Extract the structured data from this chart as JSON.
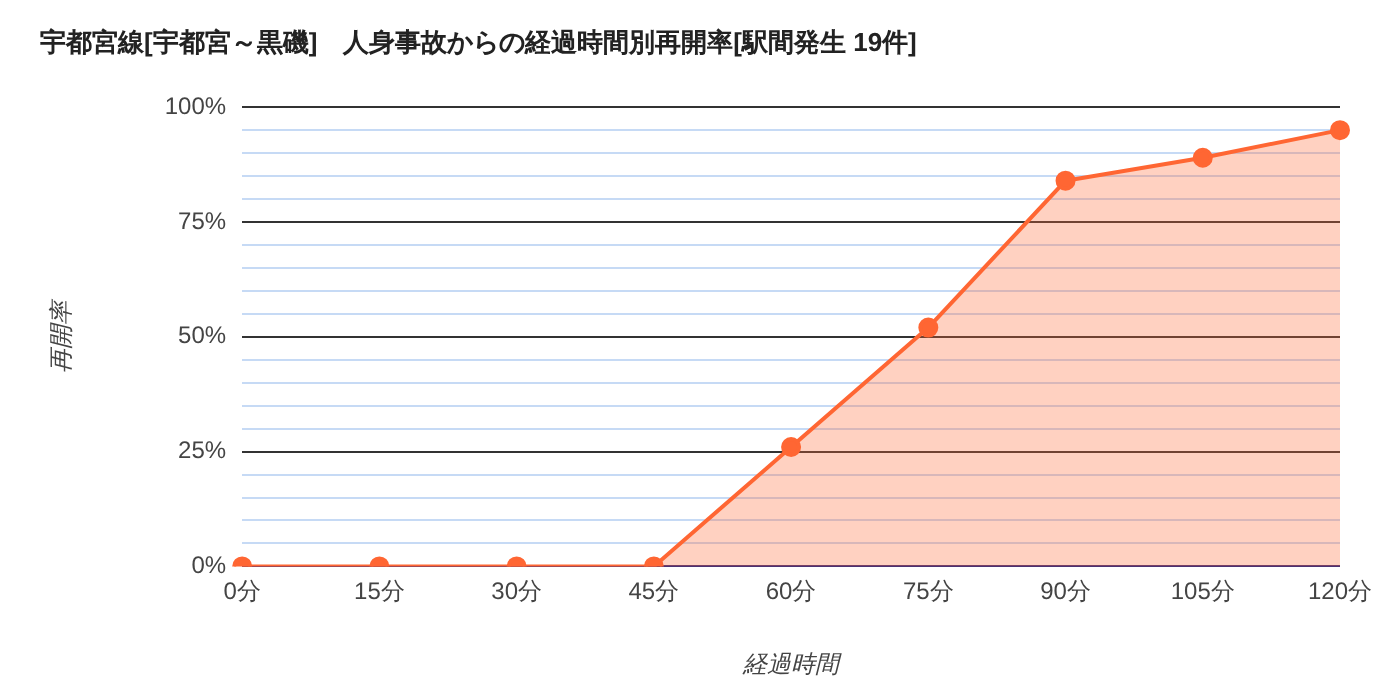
{
  "chart_data": {
    "type": "area",
    "title": "宇都宮線[宇都宮～黒磯]　人身事故からの経過時間別再開率[駅間発生 19件]",
    "xlabel": "経過時間",
    "ylabel": "再開率",
    "categories": [
      "0分",
      "15分",
      "30分",
      "45分",
      "60分",
      "75分",
      "90分",
      "105分",
      "120分"
    ],
    "series": [
      {
        "color": "#ff6633",
        "values": [
          0,
          0,
          0,
          0,
          26,
          52,
          84,
          89,
          95
        ]
      }
    ],
    "ylim": [
      0,
      100
    ],
    "yticks": [
      {
        "value": 0,
        "label": "0%"
      },
      {
        "value": 5,
        "label": null
      },
      {
        "value": 10,
        "label": null
      },
      {
        "value": 15,
        "label": null
      },
      {
        "value": 20,
        "label": null
      },
      {
        "value": 25,
        "label": "25%"
      },
      {
        "value": 30,
        "label": null
      },
      {
        "value": 35,
        "label": null
      },
      {
        "value": 40,
        "label": null
      },
      {
        "value": 45,
        "label": null
      },
      {
        "value": 50,
        "label": "50%"
      },
      {
        "value": 55,
        "label": null
      },
      {
        "value": 60,
        "label": null
      },
      {
        "value": 65,
        "label": null
      },
      {
        "value": 70,
        "label": null
      },
      {
        "value": 75,
        "label": "75%"
      },
      {
        "value": 80,
        "label": null
      },
      {
        "value": 85,
        "label": null
      },
      {
        "value": 90,
        "label": null
      },
      {
        "value": 95,
        "label": null
      },
      {
        "value": 100,
        "label": "100%"
      }
    ],
    "grid": "y",
    "legend": false,
    "marker": "circle",
    "line_style": "solid"
  }
}
